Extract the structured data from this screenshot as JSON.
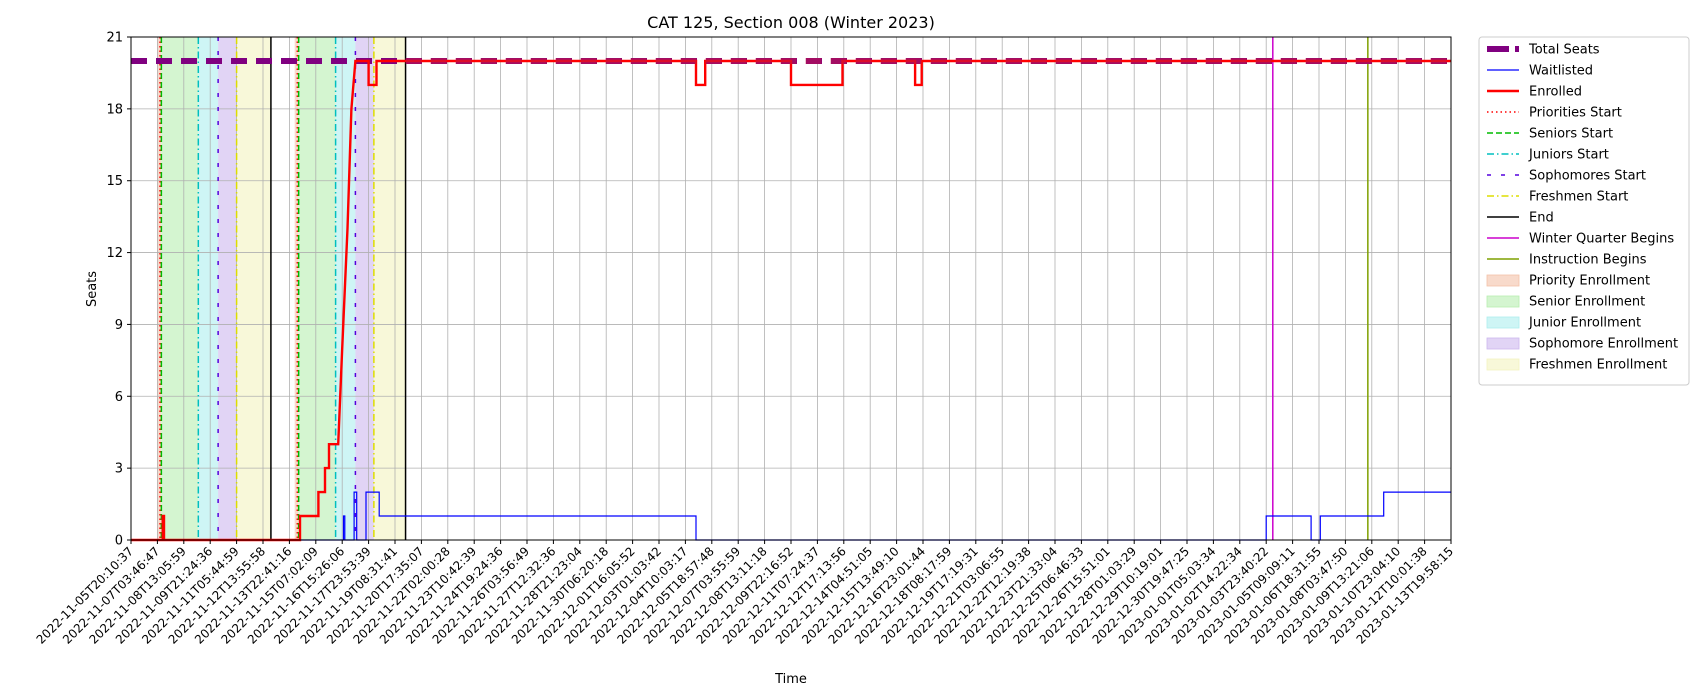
{
  "chart_data": {
    "type": "line",
    "title": "CAT 125, Section 008 (Winter 2023)",
    "xlabel": "Time",
    "ylabel": "Seats",
    "ylim": [
      0,
      21
    ],
    "yticks": [
      0,
      3,
      6,
      9,
      12,
      15,
      18,
      21
    ],
    "grid": true,
    "legend_placement": "outside-right",
    "x_tick_labels": [
      "2022-11-05T20:10:37",
      "2022-11-07T03:46:47",
      "2022-11-08T13:05:59",
      "2022-11-09T21:24:36",
      "2022-11-11T05:44:59",
      "2022-11-12T13:55:58",
      "2022-11-13T22:41:16",
      "2022-11-15T07:02:09",
      "2022-11-16T15:26:06",
      "2022-11-17T23:53:39",
      "2022-11-19T08:31:41",
      "2022-11-20T17:35:07",
      "2022-11-22T02:00:28",
      "2022-11-23T10:42:39",
      "2022-11-24T19:24:36",
      "2022-11-26T03:56:49",
      "2022-11-27T12:32:36",
      "2022-11-28T21:23:04",
      "2022-11-30T06:20:18",
      "2022-12-01T16:05:52",
      "2022-12-03T01:03:42",
      "2022-12-04T10:03:17",
      "2022-12-05T18:57:48",
      "2022-12-07T03:55:59",
      "2022-12-08T13:11:18",
      "2022-12-09T22:16:52",
      "2022-12-11T07:24:37",
      "2022-12-12T17:13:56",
      "2022-12-14T04:51:05",
      "2022-12-15T13:49:10",
      "2022-12-16T23:01:44",
      "2022-12-18T08:17:59",
      "2022-12-19T17:19:31",
      "2022-12-21T03:06:55",
      "2022-12-22T12:19:38",
      "2022-12-23T21:33:04",
      "2022-12-25T06:46:33",
      "2022-12-26T15:51:01",
      "2022-12-28T01:03:29",
      "2022-12-29T10:19:01",
      "2022-12-30T19:47:25",
      "2023-01-01T05:03:34",
      "2023-01-02T14:22:34",
      "2023-01-03T23:40:22",
      "2023-01-05T09:09:11",
      "2023-01-06T18:31:55",
      "2023-01-08T03:47:50",
      "2023-01-09T13:21:06",
      "2023-01-10T23:04:10",
      "2023-01-12T10:01:38",
      "2023-01-13T19:58:15"
    ],
    "x_index_range": [
      0,
      50
    ],
    "series": [
      {
        "name": "Total Seats",
        "color": "#800080",
        "style": "dashed-thick",
        "x": [
          0,
          50
        ],
        "y": [
          20,
          20
        ]
      },
      {
        "name": "Waitlisted",
        "color": "#0000ff",
        "style": "solid-thin",
        "x": [
          0,
          8.05,
          8.05,
          8.1,
          8.1,
          8.45,
          8.45,
          8.55,
          8.55,
          8.9,
          8.9,
          9.15,
          9.15,
          9.4,
          9.4,
          21.4,
          21.4,
          43.0,
          43.0,
          44.7,
          44.7,
          45.05,
          45.05,
          47.45,
          47.45,
          50
        ],
        "y": [
          0,
          0,
          1,
          1,
          0,
          0,
          2,
          2,
          0,
          0,
          2,
          2,
          2,
          2,
          1,
          1,
          0,
          0,
          1,
          1,
          0,
          0,
          1,
          1,
          2,
          2
        ]
      },
      {
        "name": "Enrolled",
        "color": "#ff0000",
        "style": "solid-thick",
        "x": [
          0,
          1.2,
          1.2,
          1.25,
          1.25,
          6.4,
          6.4,
          7.1,
          7.1,
          7.35,
          7.35,
          7.5,
          7.5,
          7.85,
          7.85,
          8.0,
          8.2,
          8.35,
          8.5,
          8.6,
          8.6,
          9.0,
          9.0,
          9.3,
          9.3,
          21.4,
          21.4,
          21.75,
          21.75,
          25.0,
          25.0,
          26.95,
          26.95,
          29.7,
          29.7,
          29.95,
          29.95,
          50
        ],
        "y": [
          0,
          0,
          1,
          1,
          0,
          0,
          1,
          1,
          2,
          2,
          3,
          3,
          4,
          4,
          4,
          8,
          13,
          18,
          20,
          20,
          20,
          20,
          19,
          19,
          20,
          20,
          19,
          19,
          20,
          20,
          19,
          19,
          20,
          20,
          19,
          19,
          20,
          20
        ]
      }
    ],
    "markers": [
      {
        "name": "Priorities Start",
        "color": "#ff0000",
        "style": "dotted",
        "x": [
          1.1,
          6.3
        ]
      },
      {
        "name": "Seniors Start",
        "color": "#00bb00",
        "style": "dashed",
        "x": [
          1.15,
          6.35
        ]
      },
      {
        "name": "Juniors Start",
        "color": "#00bfbf",
        "style": "dashdot",
        "x": [
          2.55,
          7.75
        ]
      },
      {
        "name": "Sophomores Start",
        "color": "#5500dd",
        "style": "loosedash",
        "x": [
          3.3,
          8.5
        ]
      },
      {
        "name": "Freshmen Start",
        "color": "#dddd00",
        "style": "dashdot",
        "x": [
          4.0,
          9.2
        ]
      },
      {
        "name": "End",
        "color": "#000000",
        "style": "solid",
        "x": [
          5.3,
          10.4
        ]
      },
      {
        "name": "Winter Quarter Begins",
        "color": "#cc00cc",
        "style": "solid",
        "x": [
          43.25
        ]
      },
      {
        "name": "Instruction Begins",
        "color": "#7fa000",
        "style": "solid",
        "x": [
          46.85
        ]
      }
    ],
    "bands": [
      {
        "name": "Priority Enrollment",
        "color": "#f4c2a8",
        "ranges": [
          [
            1.0,
            1.15
          ],
          [
            6.2,
            6.35
          ]
        ]
      },
      {
        "name": "Senior Enrollment",
        "color": "#b8efb0",
        "ranges": [
          [
            1.15,
            2.55
          ],
          [
            6.35,
            7.75
          ]
        ]
      },
      {
        "name": "Junior Enrollment",
        "color": "#aeeeee",
        "ranges": [
          [
            2.55,
            3.3
          ],
          [
            7.75,
            8.5
          ]
        ]
      },
      {
        "name": "Sophomore Enrollment",
        "color": "#cdb7ee",
        "ranges": [
          [
            3.3,
            4.0
          ],
          [
            8.5,
            9.2
          ]
        ]
      },
      {
        "name": "Freshmen Enrollment",
        "color": "#f3f3c0",
        "ranges": [
          [
            4.0,
            5.3
          ],
          [
            9.2,
            10.4
          ]
        ]
      }
    ],
    "legend": [
      {
        "label": "Total Seats",
        "kind": "line",
        "color": "#800080",
        "style": "dashed-thick"
      },
      {
        "label": "Waitlisted",
        "kind": "line",
        "color": "#0000ff",
        "style": "solid-thin"
      },
      {
        "label": "Enrolled",
        "kind": "line",
        "color": "#ff0000",
        "style": "solid-thick"
      },
      {
        "label": "Priorities Start",
        "kind": "line",
        "color": "#ff0000",
        "style": "dotted"
      },
      {
        "label": "Seniors Start",
        "kind": "line",
        "color": "#00bb00",
        "style": "dashed"
      },
      {
        "label": "Juniors Start",
        "kind": "line",
        "color": "#00bfbf",
        "style": "dashdot"
      },
      {
        "label": "Sophomores Start",
        "kind": "line",
        "color": "#5500dd",
        "style": "loosedash"
      },
      {
        "label": "Freshmen Start",
        "kind": "line",
        "color": "#dddd00",
        "style": "dashdot"
      },
      {
        "label": "End",
        "kind": "line",
        "color": "#000000",
        "style": "solid"
      },
      {
        "label": "Winter Quarter Begins",
        "kind": "line",
        "color": "#cc00cc",
        "style": "solid"
      },
      {
        "label": "Instruction Begins",
        "kind": "line",
        "color": "#7fa000",
        "style": "solid"
      },
      {
        "label": "Priority Enrollment",
        "kind": "patch",
        "color": "#f4c2a8"
      },
      {
        "label": "Senior Enrollment",
        "kind": "patch",
        "color": "#b8efb0"
      },
      {
        "label": "Junior Enrollment",
        "kind": "patch",
        "color": "#aeeeee"
      },
      {
        "label": "Sophomore Enrollment",
        "kind": "patch",
        "color": "#cdb7ee"
      },
      {
        "label": "Freshmen Enrollment",
        "kind": "patch",
        "color": "#f3f3c0"
      }
    ]
  }
}
